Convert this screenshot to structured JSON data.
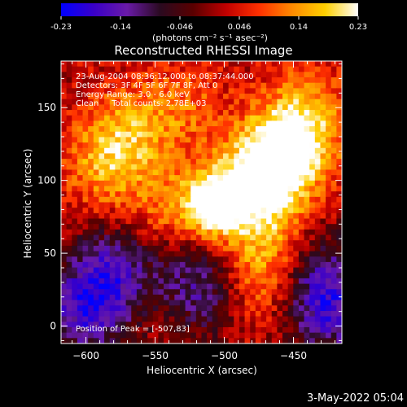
{
  "chart_data": {
    "type": "heatmap",
    "title": "Reconstructed RHESSI Image",
    "xlabel": "Heliocentric X (arcsec)",
    "ylabel": "Heliocentric Y (arcsec)",
    "xlim": [
      -618,
      -415
    ],
    "ylim": [
      -12,
      182
    ],
    "x_ticks": [
      -600,
      -550,
      -500,
      -450
    ],
    "y_ticks": [
      0,
      50,
      100,
      150
    ],
    "colorbar": {
      "label": "(photons cm⁻² s⁻¹ asec⁻²)",
      "min": -0.23,
      "max": 0.23,
      "ticks": [
        "-0.23",
        "-0.14",
        "-0.046",
        "0.046",
        "0.14",
        "0.23"
      ],
      "colors": [
        "#0000ff",
        "#3a00c8",
        "#6a1aa8",
        "#2a0a20",
        "#5a0000",
        "#c00000",
        "#ff3000",
        "#ff8a00",
        "#ffd000",
        "#ffffff"
      ]
    },
    "annotations": [
      "23-Aug-2004 08:36:12.000 to 08:37:44.000",
      "Detectors: 3F 4F 5F 6F 7F 8F, Att 0",
      "Energy Range: 3.0 - 6.0 keV",
      "Clean     Total counts: 2.78E+03"
    ],
    "peak_label": "Position of Peak = [-507,83]",
    "peak_position": [
      -507,
      83
    ],
    "peak_value": 0.23,
    "emission_sources": [
      {
        "x": -507,
        "y": 83,
        "amplitude": 0.23
      },
      {
        "x": -480,
        "y": 95,
        "amplitude": 0.17
      },
      {
        "x": -462,
        "y": 112,
        "amplitude": 0.15
      },
      {
        "x": -450,
        "y": 125,
        "amplitude": 0.13
      },
      {
        "x": -585,
        "y": 110,
        "amplitude": 0.12
      },
      {
        "x": -570,
        "y": 135,
        "amplitude": 0.1
      },
      {
        "x": -535,
        "y": 78,
        "amplitude": 0.11
      },
      {
        "x": -470,
        "y": 55,
        "amplitude": 0.1
      },
      {
        "x": -480,
        "y": 25,
        "amplitude": 0.09
      },
      {
        "x": -440,
        "y": 150,
        "amplitude": 0.09
      },
      {
        "x": -530,
        "y": 150,
        "amplitude": 0.08
      }
    ],
    "negative_regions": [
      {
        "x": -600,
        "y": 10,
        "amplitude": -0.18
      },
      {
        "x": -580,
        "y": 40,
        "amplitude": -0.14
      },
      {
        "x": -425,
        "y": 10,
        "amplitude": -0.17
      },
      {
        "x": -510,
        "y": 20,
        "amplitude": -0.12
      },
      {
        "x": -430,
        "y": 40,
        "amplitude": -0.1
      },
      {
        "x": -525,
        "y": 45,
        "amplitude": -0.08
      }
    ]
  },
  "footer": {
    "date": "3-May-2022 05:04"
  }
}
